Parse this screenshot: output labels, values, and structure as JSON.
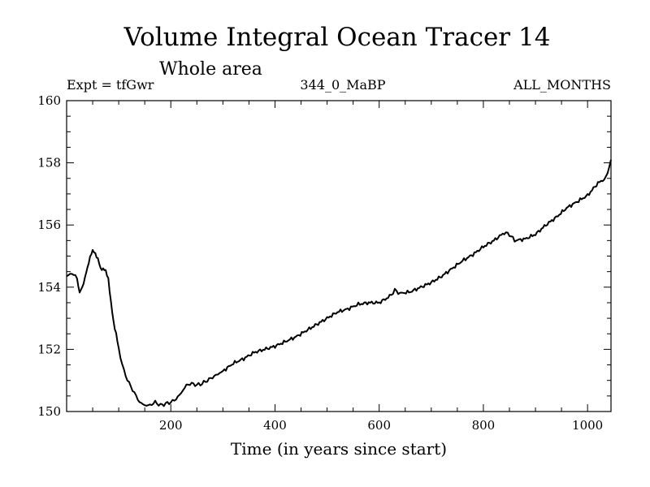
{
  "chart_data": {
    "type": "line",
    "title": "Volume Integral Ocean Tracer 14",
    "subtitle": "Whole area",
    "experiment_label": "Expt = tfGwr",
    "period_label": "344_0_MaBP",
    "months_label": "ALL_MONTHS",
    "xlabel": "Time (in years since start)",
    "ylabel": "",
    "xlim": [
      0,
      1045
    ],
    "ylim": [
      150,
      160
    ],
    "x_ticks": [
      200,
      400,
      600,
      800,
      1000
    ],
    "x_tick_labels": [
      "200",
      "400",
      "600",
      "800",
      "1000"
    ],
    "y_ticks": [
      150,
      152,
      154,
      156,
      158,
      160
    ],
    "y_tick_labels": [
      "150",
      "152",
      "154",
      "156",
      "158",
      "160"
    ],
    "grid": false,
    "series": [
      {
        "name": "Tracer 14",
        "x": [
          0,
          10,
          20,
          25,
          30,
          35,
          40,
          45,
          50,
          55,
          60,
          65,
          70,
          75,
          80,
          85,
          90,
          95,
          100,
          110,
          120,
          130,
          140,
          150,
          160,
          170,
          180,
          190,
          200,
          210,
          220,
          230,
          240,
          250,
          260,
          270,
          280,
          290,
          300,
          320,
          340,
          360,
          380,
          400,
          420,
          440,
          460,
          480,
          500,
          520,
          540,
          560,
          580,
          600,
          620,
          630,
          640,
          660,
          680,
          700,
          720,
          740,
          760,
          780,
          800,
          820,
          840,
          850,
          860,
          880,
          900,
          920,
          940,
          960,
          980,
          1000,
          1020,
          1035,
          1045
        ],
        "values": [
          154.35,
          154.45,
          154.3,
          153.8,
          154.0,
          154.3,
          154.6,
          155.0,
          155.15,
          155.1,
          154.9,
          154.6,
          154.6,
          154.5,
          154.3,
          153.5,
          152.9,
          152.5,
          152.0,
          151.3,
          150.9,
          150.6,
          150.3,
          150.2,
          150.2,
          150.3,
          150.2,
          150.25,
          150.3,
          150.4,
          150.6,
          150.85,
          150.9,
          150.85,
          150.9,
          151.0,
          151.1,
          151.2,
          151.3,
          151.55,
          151.7,
          151.9,
          152.0,
          152.1,
          152.25,
          152.4,
          152.6,
          152.8,
          153.0,
          153.2,
          153.3,
          153.45,
          153.5,
          153.5,
          153.7,
          153.9,
          153.8,
          153.85,
          154.0,
          154.15,
          154.35,
          154.6,
          154.85,
          155.05,
          155.3,
          155.5,
          155.75,
          155.7,
          155.5,
          155.55,
          155.7,
          156.0,
          156.25,
          156.55,
          156.75,
          156.95,
          157.35,
          157.5,
          158.1
        ]
      }
    ]
  }
}
